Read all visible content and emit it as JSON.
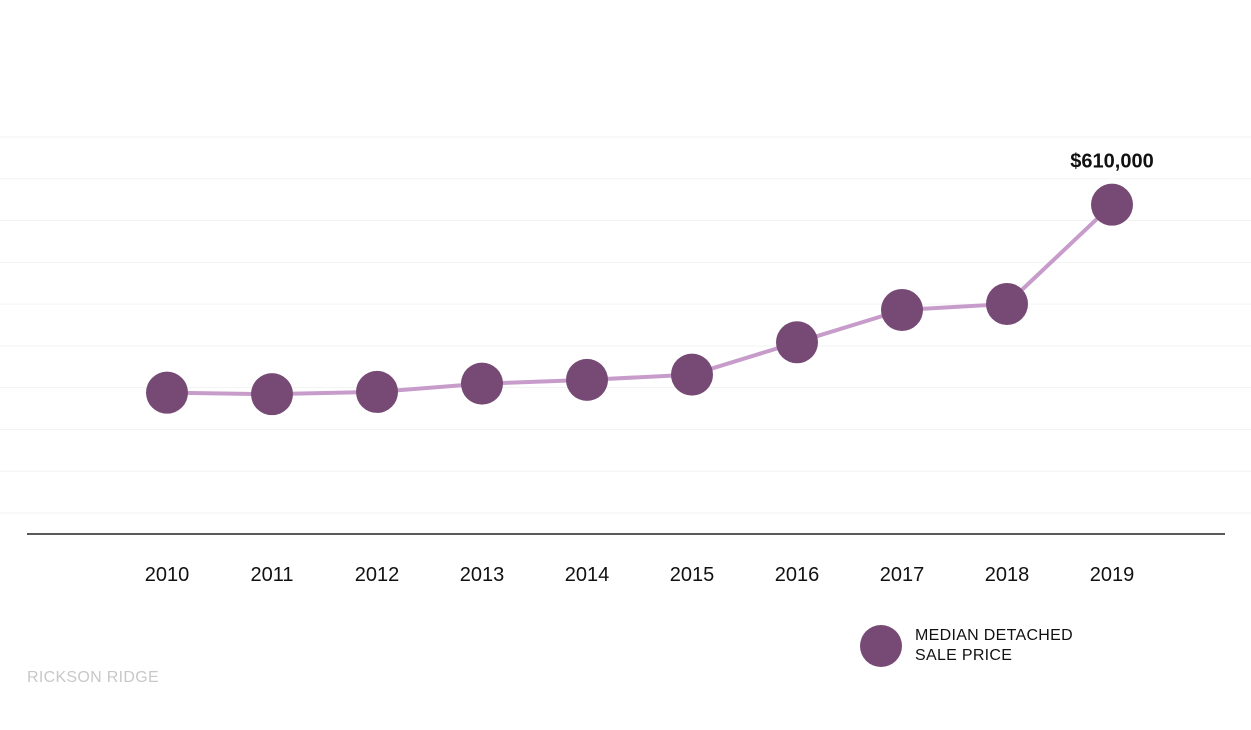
{
  "chart_data": {
    "type": "line",
    "categories": [
      "2010",
      "2011",
      "2012",
      "2013",
      "2014",
      "2015",
      "2016",
      "2017",
      "2018",
      "2019"
    ],
    "series": [
      {
        "name": "MEDIAN DETACHED SALE PRICE",
        "values": [
          360000,
          358000,
          361000,
          372000,
          377000,
          384000,
          427000,
          470000,
          478000,
          610000
        ]
      }
    ],
    "data_labels": [
      {
        "index": 9,
        "text": "$610,000"
      }
    ],
    "ylim": [
      200000,
      700000
    ],
    "grid": true,
    "legend_position": "bottom-right",
    "colors": {
      "line": "#c79ccb",
      "marker": "#764a74",
      "axis": "#222222",
      "grid": "#f3f3f3"
    }
  },
  "legend": {
    "line1": "MEDIAN DETACHED",
    "line2": "SALE PRICE"
  },
  "watermark": "RICKSON RIDGE"
}
